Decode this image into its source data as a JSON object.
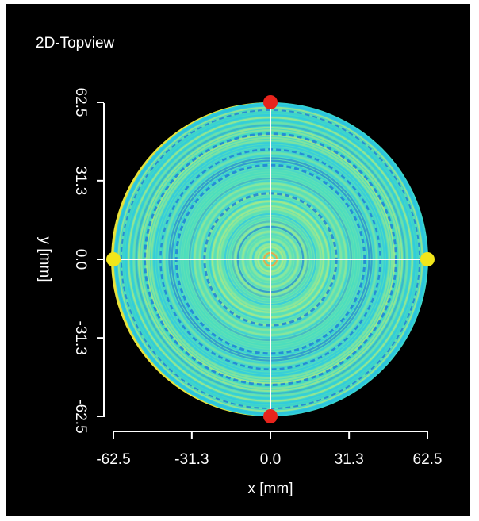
{
  "chart_data": {
    "type": "heatmap",
    "title": "2D-Topview",
    "xlabel": "x [mm]",
    "ylabel": "y [mm]",
    "x_ticks": [
      -62.5,
      -31.3,
      0.0,
      31.3,
      62.5
    ],
    "x_tick_labels": [
      "-62.5",
      "-31.3",
      "0.0",
      "31.3",
      "62.5"
    ],
    "y_ticks": [
      62.5,
      31.3,
      0.0,
      -31.3,
      -62.5
    ],
    "y_tick_labels": [
      "62.5",
      "31.3",
      "0.0",
      "-31.3",
      "-62.5"
    ],
    "xlim": [
      -62.5,
      62.5
    ],
    "ylim": [
      -62.5,
      62.5
    ],
    "disc_radius": 62.5,
    "markers": [
      {
        "x": 0.0,
        "y": 62.5,
        "color": "#e8241c"
      },
      {
        "x": 0.0,
        "y": -62.5,
        "color": "#e8241c"
      },
      {
        "x": -62.5,
        "y": 0.0,
        "color": "#f2e61a"
      },
      {
        "x": 62.5,
        "y": 0.0,
        "color": "#f2e61a"
      }
    ],
    "colors": {
      "background": "#000000",
      "crosshair": "#ffffff",
      "disc_base": "#3fdcc2",
      "ring_light": "#b9ec7a",
      "ring_dark": "#1f7fd8",
      "ring_cyan": "#27c6e8"
    },
    "grid": false
  }
}
